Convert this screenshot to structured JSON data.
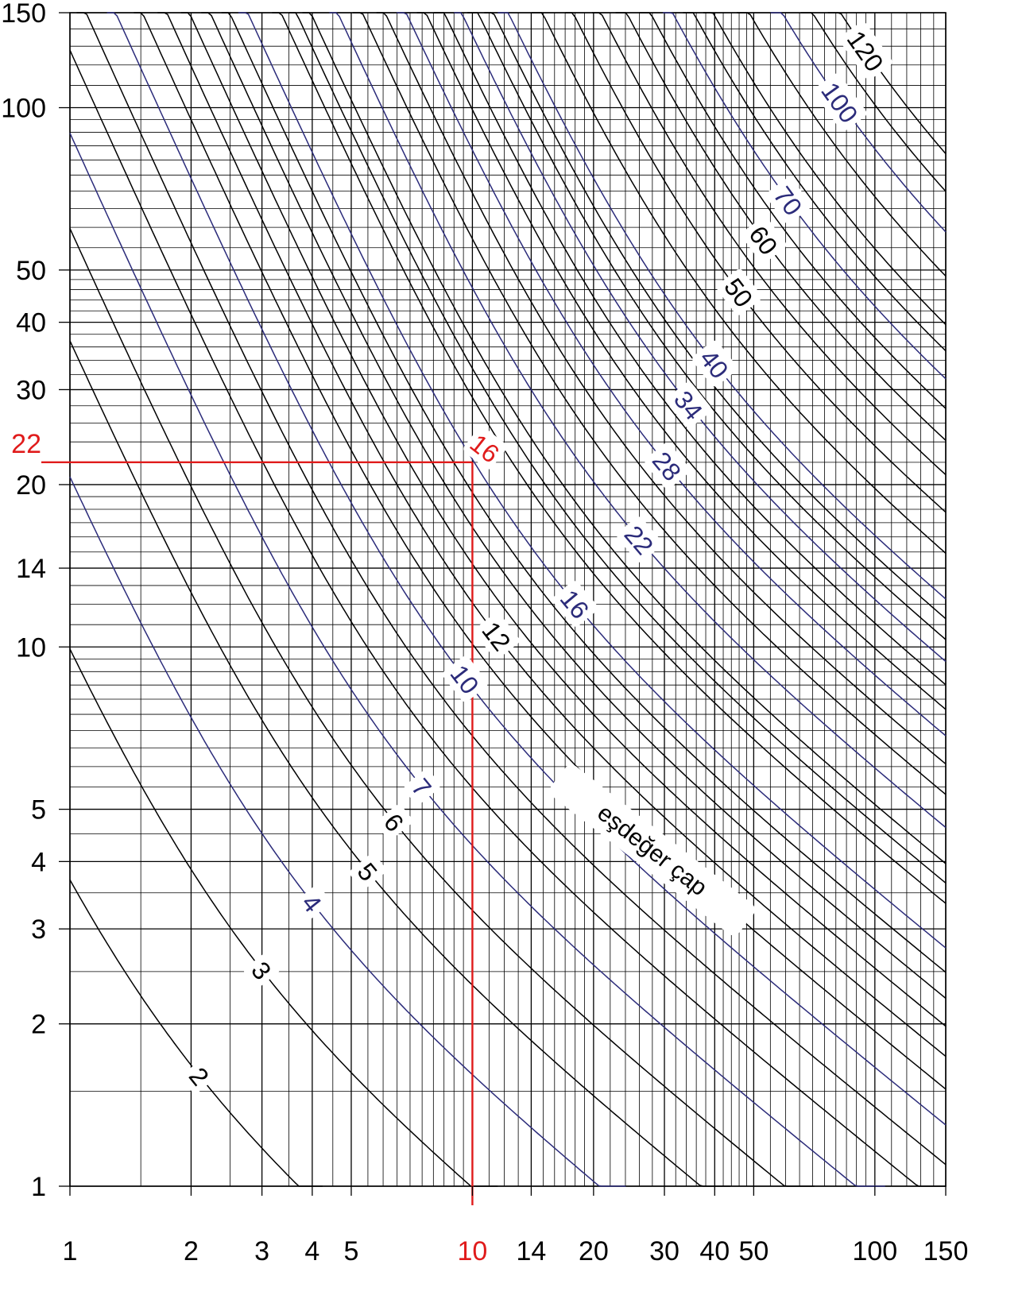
{
  "chart_data": {
    "type": "line",
    "title": "",
    "xlabel": "",
    "ylabel": "",
    "x_scale": "log",
    "y_scale": "log",
    "xlim": [
      1,
      150
    ],
    "ylim": [
      1,
      150
    ],
    "grid": true,
    "x_tick_labels": [
      "1",
      "2",
      "3",
      "4",
      "5",
      "10",
      "14",
      "20",
      "30",
      "40",
      "50",
      "100",
      "150"
    ],
    "x_tick_values": [
      1,
      2,
      3,
      4,
      5,
      10,
      14,
      20,
      30,
      40,
      50,
      100,
      150
    ],
    "y_tick_labels": [
      "1",
      "2",
      "3",
      "4",
      "5",
      "10",
      "14",
      "20",
      "30",
      "40",
      "50",
      "100",
      "150"
    ],
    "y_tick_values": [
      1,
      2,
      3,
      4,
      5,
      10,
      14,
      20,
      30,
      40,
      50,
      100,
      150
    ],
    "series": [
      {
        "label": "2",
        "value": 2,
        "color": "#000000"
      },
      {
        "label": "3",
        "value": 3,
        "color": "#000000"
      },
      {
        "label": "4",
        "value": 4,
        "color": "#2b2b7a"
      },
      {
        "label": "5",
        "value": 5,
        "color": "#000000"
      },
      {
        "label": "6",
        "value": 6,
        "color": "#000000"
      },
      {
        "label": "7",
        "value": 7,
        "color": "#2b2b7a"
      },
      {
        "label": "10",
        "value": 10,
        "color": "#2b2b7a"
      },
      {
        "label": "12",
        "value": 12,
        "color": "#000000"
      },
      {
        "label": "16",
        "value": 16,
        "color": "#2b2b7a"
      },
      {
        "label": "22",
        "value": 22,
        "color": "#2b2b7a"
      },
      {
        "label": "28",
        "value": 28,
        "color": "#2b2b7a"
      },
      {
        "label": "34",
        "value": 34,
        "color": "#2b2b7a"
      },
      {
        "label": "40",
        "value": 40,
        "color": "#2b2b7a"
      },
      {
        "label": "50",
        "value": 50,
        "color": "#000000"
      },
      {
        "label": "60",
        "value": 60,
        "color": "#000000"
      },
      {
        "label": "70",
        "value": 70,
        "color": "#2b2b7a"
      },
      {
        "label": "100",
        "value": 100,
        "color": "#2b2b7a"
      },
      {
        "label": "120",
        "value": 120,
        "color": "#000000"
      }
    ],
    "annotation": "eşdeğer çap",
    "highlight": {
      "x": 10,
      "x_label": "10",
      "y": 22,
      "y_label": "22",
      "result_label": "16",
      "color": "#e01b1b"
    }
  }
}
